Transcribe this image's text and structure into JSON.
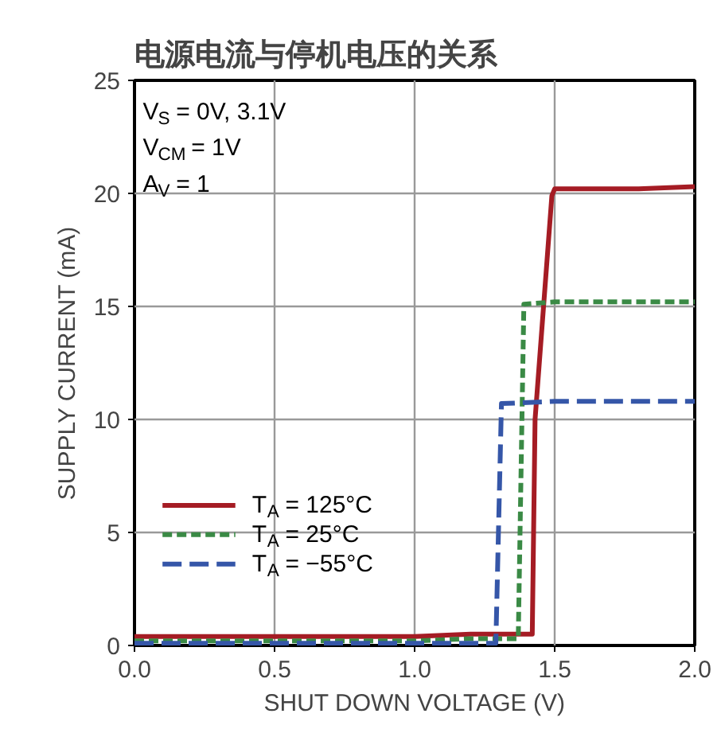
{
  "chart_data": {
    "type": "line",
    "title": "电源电流与停机电压的关系",
    "xlabel": "SHUT DOWN VOLTAGE (V)",
    "ylabel": "SUPPLY CURRENT (mA)",
    "xlim": [
      0,
      2
    ],
    "ylim": [
      0,
      25
    ],
    "xticks": [
      {
        "value": 0,
        "label": "0.0"
      },
      0.5,
      {
        "value": 1,
        "label": "1.0"
      },
      1.5,
      {
        "value": 2,
        "label": "2.0"
      }
    ],
    "yticks": [
      0,
      5,
      10,
      15,
      20,
      25
    ],
    "grid": true,
    "legend": "bottom left",
    "annotations": [
      "V$_{S}$ = 0V, 3.1V",
      "V$_{CM}$ = 1V",
      "A$_{V}$ = 1"
    ],
    "series": [
      {
        "name": "T$_{A}$ = 125°C",
        "color": "#a51c24",
        "line_style": "solid",
        "x": [
          0,
          0.5,
          1.0,
          1.2,
          1.42,
          1.43,
          1.49,
          1.5,
          1.8,
          2.0
        ],
        "values": [
          0.4,
          0.4,
          0.4,
          0.5,
          0.5,
          10.0,
          19.9,
          20.2,
          20.2,
          20.3
        ]
      },
      {
        "name": "T$_{A}$ = 25°C",
        "color": "#3a8a45",
        "line_style": "dashed",
        "x": [
          0,
          0.5,
          1.0,
          1.2,
          1.37,
          1.39,
          1.5,
          2.0
        ],
        "values": [
          0.2,
          0.2,
          0.2,
          0.3,
          0.3,
          15.1,
          15.2,
          15.2
        ]
      },
      {
        "name": "T$_{A}$ = −55°C",
        "color": "#3556a8",
        "line_style": "dashed",
        "x": [
          0,
          0.5,
          1.0,
          1.2,
          1.29,
          1.31,
          1.5,
          2.0
        ],
        "values": [
          0.1,
          0.1,
          0.1,
          0.1,
          0.1,
          10.7,
          10.8,
          10.8
        ]
      }
    ]
  }
}
